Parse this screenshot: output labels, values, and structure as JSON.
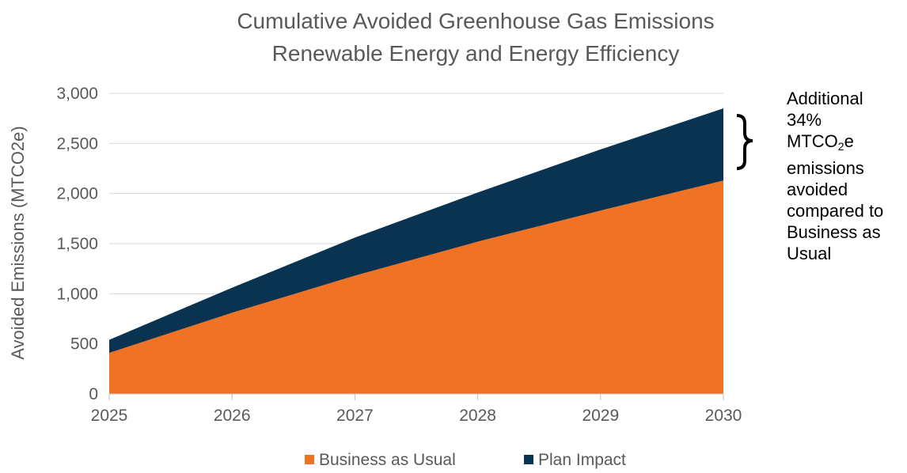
{
  "chart_data": {
    "type": "area",
    "stacked": true,
    "title": "Cumulative Avoided Greenhouse Gas Emissions",
    "subtitle": "Renewable Energy and Energy Efficiency",
    "xlabel": "",
    "ylabel": "Avoided Emissions (MTCO2e)",
    "x": [
      2025,
      2026,
      2027,
      2028,
      2029,
      2030
    ],
    "x_tick_labels": [
      "2025",
      "2026",
      "2027",
      "2028",
      "2029",
      "2030"
    ],
    "ylim": [
      0,
      3000
    ],
    "y_ticks": [
      0,
      500,
      1000,
      1500,
      2000,
      2500,
      3000
    ],
    "y_tick_labels": [
      "0",
      "500",
      "1,000",
      "1,500",
      "2,000",
      "2,500",
      "3,000"
    ],
    "grid": true,
    "legend_position": "bottom",
    "series": [
      {
        "name": "Business as Usual",
        "color": "#F07224",
        "values": [
          410,
          810,
          1180,
          1520,
          1830,
          2130
        ]
      },
      {
        "name": "Plan Impact",
        "color": "#0A3351",
        "values": [
          130,
          250,
          380,
          490,
          610,
          720
        ]
      }
    ],
    "annotation": {
      "pre": [
        "Additional",
        "34%"
      ],
      "mtco_prefix": "MTCO",
      "mtco_sub": "2",
      "mtco_suffix": "e",
      "post": [
        "emissions",
        "avoided",
        "compared to",
        "Business as",
        "Usual"
      ]
    },
    "colors": {
      "grid": "#D9D9D9",
      "axis": "#BFBFBF",
      "text": "#595959"
    }
  }
}
